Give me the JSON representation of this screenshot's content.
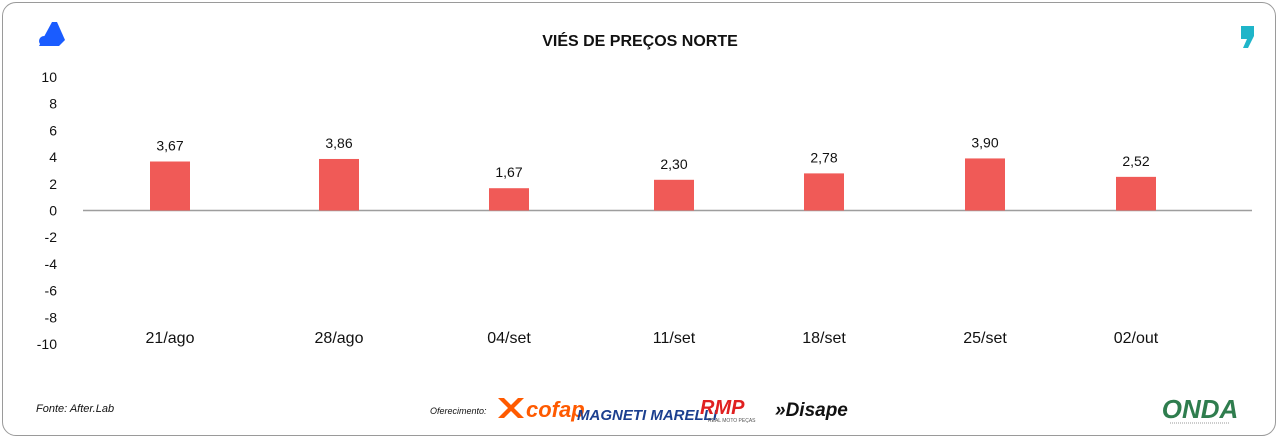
{
  "chart_data": {
    "type": "bar",
    "title": "VIÉS DE PREÇOS NORTE",
    "categories": [
      "21/ago",
      "28/ago",
      "04/set",
      "11/set",
      "18/set",
      "25/set",
      "02/out"
    ],
    "values": [
      3.67,
      3.86,
      1.67,
      2.3,
      2.78,
      3.9,
      2.52
    ],
    "data_labels": [
      "3,67",
      "3,86",
      "1,67",
      "2,30",
      "2,78",
      "3,90",
      "2,52"
    ],
    "yticks": [
      "10",
      "8",
      "6",
      "4",
      "2",
      "0",
      "-2",
      "-4",
      "-6",
      "-8",
      "-10"
    ],
    "ylim": [
      -10,
      10
    ],
    "bar_color": "#f05a57",
    "grid": false
  },
  "footer": {
    "source": "Fonte: After.Lab",
    "sponsor_label": "Oferecimento:",
    "sponsors": [
      "cofap",
      "MAGNETI MARELLI",
      "RMP",
      "»Disape"
    ],
    "rmp_tagline": "REAL MOTO PEÇAS",
    "brand": "ONDA"
  },
  "colors": {
    "logo_blue": "#1a5cff",
    "cofap_orange": "#ff5a00",
    "marelli_blue": "#1c3f8f",
    "rmp_red": "#e02020",
    "onda_green": "#2f7d4e"
  }
}
